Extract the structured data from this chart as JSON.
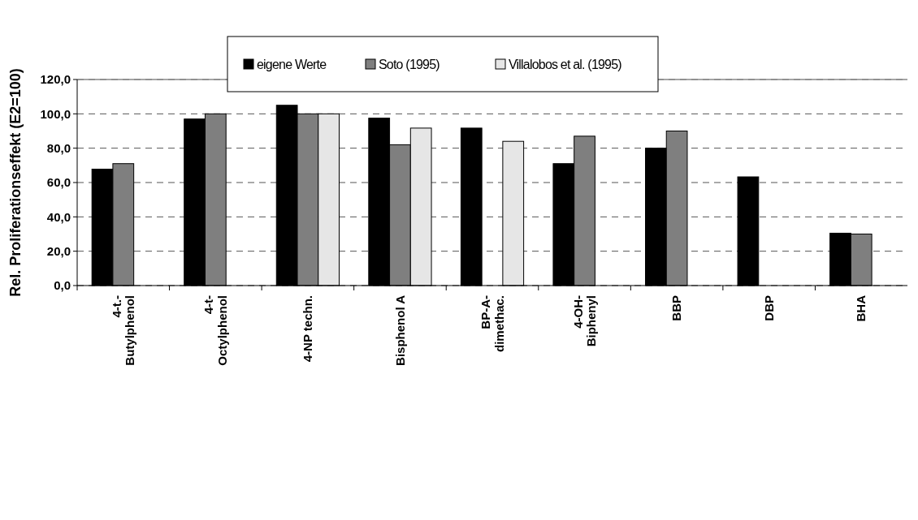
{
  "chart_data": {
    "type": "bar",
    "ylabel": "Rel. Proliferationseffekt (E2=100)",
    "categories": [
      "4-t.-\nButylphenol",
      "4-t-\nOctylphenol",
      "4-NP techn.",
      "Bisphenol A",
      "BP-A-\ndimethac.",
      "4-OH-\nBiphenyl",
      "BBP",
      "DBP",
      "BHA"
    ],
    "series": [
      {
        "name": "eigene Werte",
        "color": "#000000",
        "values": [
          67.8,
          97,
          105,
          97.5,
          91.7,
          71,
          80,
          63.3,
          30.5
        ]
      },
      {
        "name": "Soto (1995)",
        "color": "#7f7f7f",
        "values": [
          71,
          100,
          100,
          82,
          null,
          87,
          90,
          null,
          30
        ]
      },
      {
        "name": "Villalobos et al. (1995)",
        "color": "#e6e6e6",
        "values": [
          null,
          null,
          100,
          91.7,
          84,
          null,
          null,
          null,
          null
        ]
      }
    ],
    "ylim": [
      0,
      120
    ],
    "yticks": [
      {
        "value": 0,
        "label": "0,0"
      },
      {
        "value": 20,
        "label": "20,0"
      },
      {
        "value": 40,
        "label": "40,0"
      },
      {
        "value": 60,
        "label": "60,0"
      },
      {
        "value": 80,
        "label": "80,0"
      },
      {
        "value": 100,
        "label": "100,0"
      },
      {
        "value": 120,
        "label": "120,0"
      }
    ],
    "grid": "y",
    "legend": "top"
  }
}
